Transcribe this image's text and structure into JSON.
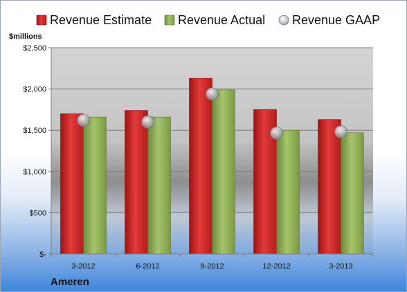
{
  "chart_data": {
    "type": "bar",
    "title": "",
    "unit_label": "$millions",
    "company": "Ameren",
    "categories": [
      "3-2012",
      "6-2012",
      "9-2012",
      "12-2012",
      "3-2013"
    ],
    "series": [
      {
        "name": "Revenue Estimate",
        "type": "bar",
        "color": "#d42a2a",
        "values": [
          1700,
          1740,
          2130,
          1750,
          1630
        ]
      },
      {
        "name": "Revenue Actual",
        "type": "bar",
        "color": "#8fae5a",
        "values": [
          1660,
          1660,
          1990,
          1500,
          1470
        ]
      },
      {
        "name": "Revenue GAAP",
        "type": "marker",
        "color": "#c9ccd4",
        "values": [
          1620,
          1600,
          1940,
          1465,
          1480
        ]
      }
    ],
    "ylim": [
      0,
      2500
    ],
    "yticks": [
      0,
      500,
      1000,
      1500,
      2000,
      2500
    ],
    "ytick_labels": [
      "$-",
      "$500",
      "$1,000",
      "$1,500",
      "$2,000",
      "$2,500"
    ],
    "grid": true,
    "legend_position": "top"
  }
}
